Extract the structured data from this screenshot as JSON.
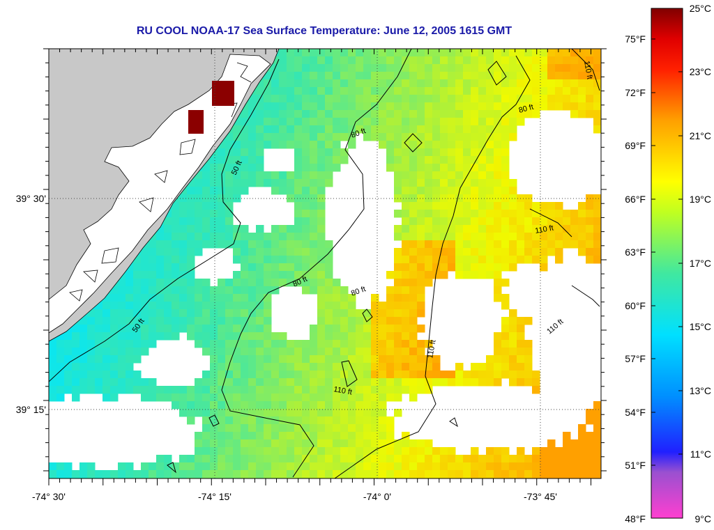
{
  "title": "RU COOL  NOAA-17  Sea Surface Temperature:  June 12, 2005 1615 GMT",
  "axes": {
    "x_labels": [
      "-74° 30'",
      "-74° 15'",
      "-74° 0'",
      "-73° 45'"
    ],
    "y_labels": [
      "39° 30'",
      "39° 15'"
    ]
  },
  "colorbar": {
    "fahrenheit": [
      "75°F",
      "72°F",
      "69°F",
      "66°F",
      "63°F",
      "60°F",
      "57°F",
      "54°F",
      "51°F",
      "48°F"
    ],
    "celsius": [
      "25°C",
      "23°C",
      "21°C",
      "19°C",
      "17°C",
      "15°C",
      "13°C",
      "11°C",
      "9°C"
    ]
  },
  "contours": {
    "labels": [
      "50 ft",
      "50 ft",
      "80 ft",
      "80 ft",
      "80 ft",
      "80 ft",
      "110 ft",
      "110 ft",
      "110 ft",
      "110 ft",
      "110 ft"
    ]
  },
  "colors": {
    "title": "#1a1aa8",
    "land": "#c8c8c8",
    "cloud": "#ffffff",
    "hot_pixel": "#8b0000"
  }
}
